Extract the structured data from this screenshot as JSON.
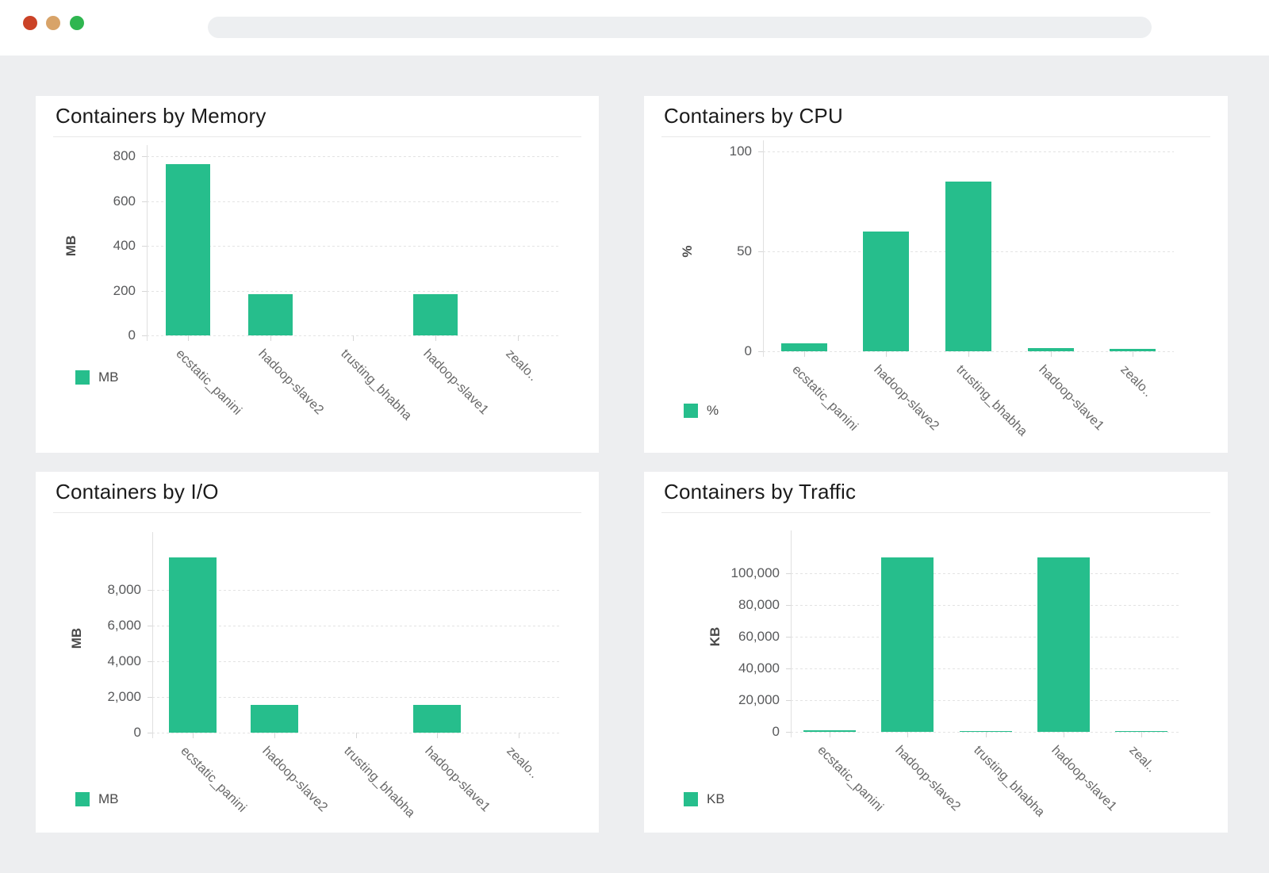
{
  "window": {
    "traffic_lights": [
      "close",
      "minimize",
      "maximize"
    ],
    "url_bar_value": ""
  },
  "colors": {
    "bar_green": "#26be8c",
    "dot_red": "#cb4327",
    "dot_orange": "#d8a368",
    "dot_green": "#2fb650",
    "page_background": "#edeef0",
    "panel_background": "#ffffff"
  },
  "chart_data": [
    {
      "type": "bar",
      "title": "Containers by Memory",
      "xlabel": "",
      "ylabel": "MB",
      "legend": "MB",
      "legend_position": "bottom-left",
      "grid": "horizontal-dashed",
      "categories": [
        "ecstatic_panini",
        "hadoop-slave2",
        "trusting_bhabha",
        "hadoop-slave1",
        "zealo.."
      ],
      "values": [
        765,
        185,
        0,
        185,
        0
      ],
      "ylim": [
        0,
        800
      ],
      "yticks": [
        {
          "value": 0,
          "label": "0"
        },
        {
          "value": 200,
          "label": "200"
        },
        {
          "value": 400,
          "label": "400"
        },
        {
          "value": 600,
          "label": "600"
        },
        {
          "value": 800,
          "label": "800"
        }
      ],
      "bar_color": "#26be8c",
      "menu_icon": "hamburger-menu-icon"
    },
    {
      "type": "bar",
      "title": "Containers by CPU",
      "xlabel": "",
      "ylabel": "%",
      "legend": "%",
      "legend_position": "bottom-left",
      "grid": "horizontal-dashed",
      "categories": [
        "ecstatic_panini",
        "hadoop-slave2",
        "trusting_bhabha",
        "hadoop-slave1",
        "zealo.."
      ],
      "values": [
        4,
        60,
        85,
        1.5,
        1
      ],
      "ylim": [
        0,
        100
      ],
      "yticks": [
        {
          "value": 0,
          "label": "0"
        },
        {
          "value": 50,
          "label": "50"
        },
        {
          "value": 100,
          "label": "100"
        }
      ],
      "bar_color": "#26be8c",
      "menu_icon": "hamburger-menu-icon"
    },
    {
      "type": "bar",
      "title": "Containers by I/O",
      "xlabel": "",
      "ylabel": "MB",
      "legend": "MB",
      "legend_position": "bottom-left",
      "grid": "horizontal-dashed",
      "categories": [
        "ecstatic_panini",
        "hadoop-slave2",
        "trusting_bhabha",
        "hadoop-slave1",
        "zealo.."
      ],
      "values": [
        9800,
        1550,
        0,
        1550,
        0
      ],
      "ylim": [
        0,
        10600
      ],
      "yticks": [
        {
          "value": 0,
          "label": "0"
        },
        {
          "value": 2000,
          "label": "2,000"
        },
        {
          "value": 4000,
          "label": "4,000"
        },
        {
          "value": 6000,
          "label": "6,000"
        },
        {
          "value": 8000,
          "label": "8,000"
        }
      ],
      "bar_color": "#26be8c",
      "menu_icon": "hamburger-menu-icon"
    },
    {
      "type": "bar",
      "title": "Containers by Traffic",
      "xlabel": "",
      "ylabel": "KB",
      "legend": "KB",
      "legend_position": "bottom-left",
      "grid": "horizontal-dashed",
      "categories": [
        "ecstatic_panini",
        "hadoop-slave2",
        "trusting_bhabha",
        "hadoop-slave1",
        "zeal.."
      ],
      "values": [
        800,
        110000,
        400,
        110000,
        400
      ],
      "ylim": [
        0,
        120000
      ],
      "yticks": [
        {
          "value": 0,
          "label": "0"
        },
        {
          "value": 20000,
          "label": "20,000"
        },
        {
          "value": 40000,
          "label": "40,000"
        },
        {
          "value": 60000,
          "label": "60,000"
        },
        {
          "value": 80000,
          "label": "80,000"
        },
        {
          "value": 100000,
          "label": "100,000"
        }
      ],
      "bar_color": "#26be8c",
      "menu_icon": "hamburger-menu-icon"
    }
  ]
}
